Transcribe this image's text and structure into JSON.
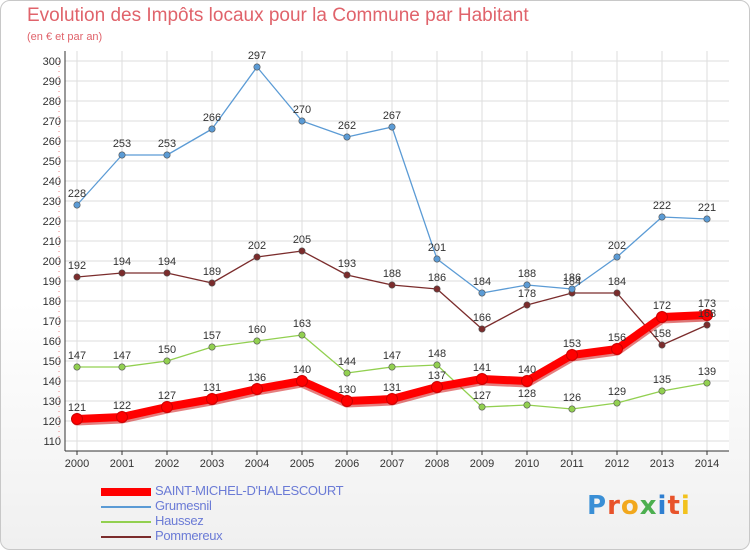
{
  "header": {
    "title": "Evolution des Impôts locaux pour la Commune par Habitant",
    "subtitle": "(en € et par an)"
  },
  "logo": {
    "text": "Proxiti",
    "colors": [
      "#3a8fd6",
      "#e8532b",
      "#f2a81d",
      "#4caf50",
      "#2f7fd1",
      "#e8532b",
      "#f2c21d"
    ]
  },
  "chart_data": {
    "type": "line",
    "x": [
      "2000",
      "2001",
      "2002",
      "2003",
      "2004",
      "2005",
      "2006",
      "2007",
      "2008",
      "2009",
      "2010",
      "2011",
      "2012",
      "2013",
      "2014"
    ],
    "ylim": [
      110,
      300
    ],
    "yticks": [
      110,
      120,
      130,
      140,
      150,
      160,
      170,
      180,
      190,
      200,
      210,
      220,
      230,
      240,
      250,
      260,
      270,
      280,
      290,
      300
    ],
    "grid": true,
    "legend_position": "bottom-left",
    "series": [
      {
        "name": "SAINT-MICHEL-D'HALESCOURT",
        "color": "#ff0000",
        "values": [
          121,
          122,
          127,
          131,
          136,
          140,
          130,
          131,
          137,
          141,
          140,
          153,
          156,
          172,
          173
        ]
      },
      {
        "name": "Grumesnil",
        "color": "#5b9bd5",
        "values": [
          228,
          253,
          253,
          266,
          297,
          270,
          262,
          267,
          201,
          184,
          188,
          186,
          202,
          222,
          221
        ]
      },
      {
        "name": "Haussez",
        "color": "#92d050",
        "values": [
          147,
          147,
          150,
          157,
          160,
          163,
          144,
          147,
          148,
          127,
          128,
          126,
          129,
          135,
          139
        ]
      },
      {
        "name": "Pommereux",
        "color": "#7b2c2c",
        "values": [
          192,
          194,
          194,
          189,
          202,
          205,
          193,
          188,
          186,
          166,
          178,
          184,
          184,
          158,
          168
        ]
      }
    ],
    "labels": [
      [
        "121",
        "122",
        "127",
        "131",
        "136",
        "140",
        "130",
        "131",
        "137",
        "141",
        "140",
        "153",
        "156",
        "172",
        "173"
      ],
      [
        "228",
        "253",
        "253",
        "266",
        "297",
        "270",
        "262",
        "267",
        "201",
        "184",
        "188",
        "186",
        "202",
        "222",
        "221"
      ],
      [
        "147",
        "147",
        "150",
        "157",
        "160",
        "163",
        "144",
        "147",
        "148",
        "127",
        "128",
        "126",
        "129",
        "135",
        "139"
      ],
      [
        "192",
        "194",
        "194",
        "189",
        "202",
        "205",
        "193",
        "188",
        "186",
        "166",
        "178",
        "184",
        "184",
        "158",
        "168"
      ]
    ]
  }
}
